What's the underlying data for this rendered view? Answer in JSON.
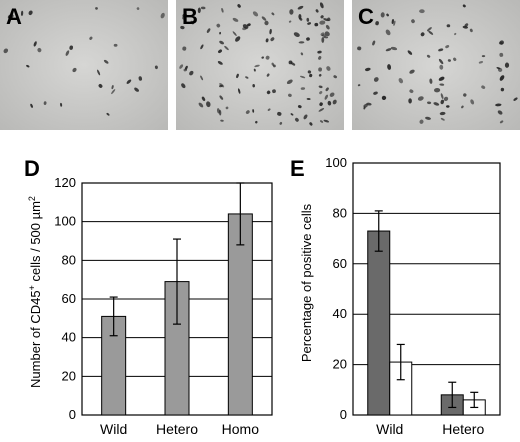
{
  "photo_panels": [
    {
      "label": "A",
      "density": "low"
    },
    {
      "label": "B",
      "density": "high"
    },
    {
      "label": "C",
      "density": "medium"
    }
  ],
  "colors": {
    "gray_bar": "#9a9a9a",
    "dark_bar": "#6a6a6a",
    "open_bar": "#ffffff",
    "grid": "#000000",
    "micrograph": "#c9c9c7"
  },
  "chart_data": [
    {
      "panel": "D",
      "type": "bar",
      "categories": [
        "Wild",
        "Hetero",
        "Homo"
      ],
      "series": [
        {
          "values": [
            51,
            69,
            104
          ],
          "errors": [
            10,
            22,
            16
          ]
        }
      ],
      "ylabel_parts": [
        "Number of CD45",
        "+",
        " cells / 500 µm",
        "2"
      ],
      "ylim": [
        0,
        120
      ],
      "yticks": [
        "0",
        "20",
        "40",
        "60",
        "80",
        "100",
        "120"
      ],
      "grid": true
    },
    {
      "panel": "E",
      "type": "bar",
      "categories": [
        "Wild",
        "Hetero"
      ],
      "series": [
        {
          "values": [
            73,
            8
          ],
          "errors": [
            8,
            5
          ]
        },
        {
          "values": [
            21,
            6
          ],
          "errors": [
            7,
            3
          ]
        }
      ],
      "ylabel": "Percentage of positive cells",
      "ylim": [
        0,
        100
      ],
      "yticks": [
        "0",
        "20",
        "40",
        "60",
        "80",
        "100"
      ],
      "grid": true
    }
  ]
}
